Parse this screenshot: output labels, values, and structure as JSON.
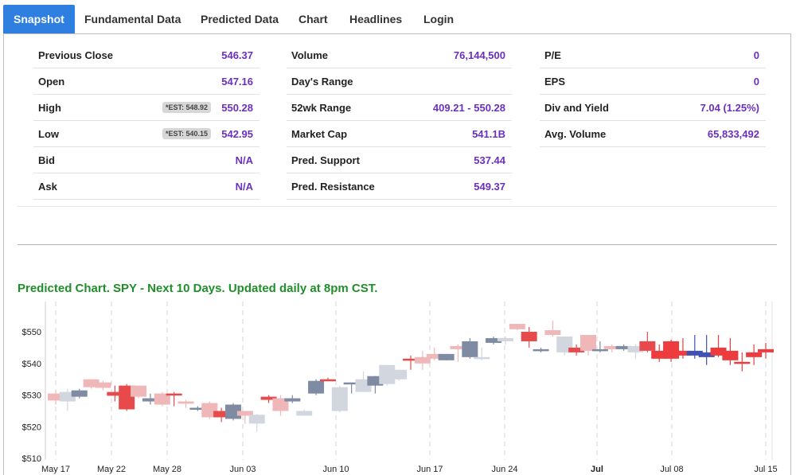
{
  "tabs": [
    "Snapshot",
    "Fundamental Data",
    "Predicted Data",
    "Chart",
    "Headlines",
    "Login"
  ],
  "col1": [
    {
      "label": "Previous Close",
      "value": "546.37"
    },
    {
      "label": "Open",
      "value": "547.16"
    },
    {
      "label": "High",
      "value": "550.28",
      "est": "*EST: 548.92"
    },
    {
      "label": "Low",
      "value": "542.95",
      "est": "*EST: 540.15"
    },
    {
      "label": "Bid",
      "value": "N/A"
    },
    {
      "label": "Ask",
      "value": "N/A"
    }
  ],
  "col2": [
    {
      "label": "Volume",
      "value": "76,144,500"
    },
    {
      "label": "Day's Range",
      "value": ""
    },
    {
      "label": "52wk Range",
      "value": "409.21 - 550.28"
    },
    {
      "label": "Market Cap",
      "value": "541.1B"
    },
    {
      "label": "Pred. Support",
      "value": "537.44"
    },
    {
      "label": "Pred. Resistance",
      "value": "549.37"
    }
  ],
  "col3": [
    {
      "label": "P/E",
      "value": "0"
    },
    {
      "label": "EPS",
      "value": "0"
    },
    {
      "label": "Div and Yield",
      "value": "7.04 (1.25%)"
    },
    {
      "label": "Avg. Volume",
      "value": "65,833,492"
    }
  ],
  "chart_title": "Predicted Chart. SPY - Next 10 Days. Updated daily at 8pm CST.",
  "chart_data": {
    "type": "candlestick",
    "ylim": [
      510,
      555
    ],
    "y_ticks": [
      550,
      540,
      530,
      520,
      510
    ],
    "y_tick_labels": [
      "$550",
      "$540",
      "$530",
      "$520",
      "$510"
    ],
    "x_tick_labels": [
      "May 17",
      "May 22",
      "May 28",
      "Jun 03",
      "Jun 10",
      "Jun 17",
      "Jun 24",
      "Jul",
      "Jul 08",
      "Jul 15"
    ],
    "colors": {
      "up_dark": "#7f8aa3",
      "up_light": "#d2d6df",
      "down_light": "#efb7b8",
      "down_dark": "#e84a4c",
      "pred_down": "#ee3b3d",
      "pred_up": "#3f51b5"
    },
    "candles": [
      {
        "o": 530.5,
        "h": 531.5,
        "l": 527.0,
        "c": 528.3,
        "color": "down_light"
      },
      {
        "o": 528.0,
        "h": 532.0,
        "l": 525.0,
        "c": 531.0,
        "color": "up_light"
      },
      {
        "o": 531.5,
        "h": 532.0,
        "l": 529.0,
        "c": 529.5,
        "color": "up_dark"
      },
      {
        "o": 535.0,
        "h": 535.0,
        "l": 532.0,
        "c": 532.5,
        "color": "down_light"
      },
      {
        "o": 534.0,
        "h": 534.5,
        "l": 531.5,
        "c": 532.3,
        "color": "down_light"
      },
      {
        "o": 531.0,
        "h": 533.0,
        "l": 528.0,
        "c": 529.8,
        "color": "down_dark"
      },
      {
        "o": 533.0,
        "h": 533.5,
        "l": 525.0,
        "c": 525.5,
        "color": "down_dark"
      },
      {
        "o": 533.0,
        "h": 533.0,
        "l": 529.0,
        "c": 529.5,
        "color": "down_light"
      },
      {
        "o": 529.0,
        "h": 530.5,
        "l": 527.0,
        "c": 528.0,
        "color": "up_dark"
      },
      {
        "o": 530.5,
        "h": 531.0,
        "l": 526.5,
        "c": 527.0,
        "color": "down_light"
      },
      {
        "o": 530.5,
        "h": 531.0,
        "l": 526.5,
        "c": 530.0,
        "color": "down_dark"
      },
      {
        "o": 527.3,
        "h": 528.5,
        "l": 526.0,
        "c": 528.0,
        "color": "down_light"
      },
      {
        "o": 525.5,
        "h": 526.5,
        "l": 525.0,
        "c": 526.0,
        "color": "up_dark"
      },
      {
        "o": 527.5,
        "h": 528.0,
        "l": 522.5,
        "c": 523.0,
        "color": "down_light"
      },
      {
        "o": 525.0,
        "h": 526.0,
        "l": 521.5,
        "c": 523.0,
        "color": "down_dark"
      },
      {
        "o": 522.5,
        "h": 527.5,
        "l": 522.0,
        "c": 527.0,
        "color": "up_dark"
      },
      {
        "o": 525.0,
        "h": 525.0,
        "l": 521.0,
        "c": 523.5,
        "color": "down_light"
      },
      {
        "o": 521.0,
        "h": 524.0,
        "l": 518.5,
        "c": 523.8,
        "color": "up_light"
      },
      {
        "o": 529.5,
        "h": 530.0,
        "l": 527.5,
        "c": 528.5,
        "color": "down_dark"
      },
      {
        "o": 529.0,
        "h": 530.0,
        "l": 523.5,
        "c": 525.0,
        "color": "down_light"
      },
      {
        "o": 529.0,
        "h": 530.0,
        "l": 527.5,
        "c": 528.0,
        "color": "up_dark"
      },
      {
        "o": 523.5,
        "h": 525.5,
        "l": 523.5,
        "c": 525.0,
        "color": "up_light"
      },
      {
        "o": 530.5,
        "h": 535.0,
        "l": 530.0,
        "c": 534.5,
        "color": "up_dark"
      },
      {
        "o": 535.0,
        "h": 535.5,
        "l": 534.5,
        "c": 534.8,
        "color": "down_dark"
      },
      {
        "o": 525.0,
        "h": 533.0,
        "l": 524.5,
        "c": 532.5,
        "color": "up_light"
      },
      {
        "o": 533.5,
        "h": 534.0,
        "l": 530.5,
        "c": 534.0,
        "color": "up_dark"
      },
      {
        "o": 531.0,
        "h": 537.5,
        "l": 531.0,
        "c": 535.0,
        "color": "up_light"
      },
      {
        "o": 533.0,
        "h": 536.0,
        "l": 530.5,
        "c": 536.0,
        "color": "up_dark"
      },
      {
        "o": 533.5,
        "h": 539.5,
        "l": 533.0,
        "c": 539.5,
        "color": "up_light"
      },
      {
        "o": 535.0,
        "h": 538.0,
        "l": 534.5,
        "c": 538.0,
        "color": "up_light"
      },
      {
        "o": 541.5,
        "h": 542.5,
        "l": 538.0,
        "c": 541.0,
        "color": "down_dark"
      },
      {
        "o": 540.0,
        "h": 544.0,
        "l": 538.0,
        "c": 542.0,
        "color": "down_light"
      },
      {
        "o": 543.0,
        "h": 545.0,
        "l": 541.0,
        "c": 541.5,
        "color": "down_light"
      },
      {
        "o": 541.0,
        "h": 543.0,
        "l": 541.0,
        "c": 543.0,
        "color": "up_dark"
      },
      {
        "o": 545.5,
        "h": 546.0,
        "l": 540.5,
        "c": 544.5,
        "color": "down_light"
      },
      {
        "o": 542.0,
        "h": 548.0,
        "l": 541.5,
        "c": 547.0,
        "color": "up_dark"
      },
      {
        "o": 541.5,
        "h": 545.0,
        "l": 541.0,
        "c": 542.0,
        "color": "up_light"
      },
      {
        "o": 548.0,
        "h": 548.5,
        "l": 546.0,
        "c": 546.5,
        "color": "up_dark"
      },
      {
        "o": 547.0,
        "h": 548.5,
        "l": 546.0,
        "c": 548.0,
        "color": "up_light"
      },
      {
        "o": 552.5,
        "h": 552.5,
        "l": 550.5,
        "c": 550.8,
        "color": "down_light"
      },
      {
        "o": 550.0,
        "h": 551.5,
        "l": 545.0,
        "c": 547.0,
        "color": "down_dark"
      },
      {
        "o": 544.5,
        "h": 545.0,
        "l": 543.5,
        "c": 544.0,
        "color": "up_dark"
      },
      {
        "o": 550.5,
        "h": 553.5,
        "l": 548.5,
        "c": 549.0,
        "color": "down_light"
      },
      {
        "o": 548.5,
        "h": 548.5,
        "l": 542.5,
        "c": 543.5,
        "color": "up_light"
      },
      {
        "o": 545.0,
        "h": 546.0,
        "l": 542.5,
        "c": 543.5,
        "color": "down_dark"
      },
      {
        "o": 549.0,
        "h": 549.0,
        "l": 542.5,
        "c": 544.0,
        "color": "down_light"
      },
      {
        "o": 544.0,
        "h": 547.0,
        "l": 543.5,
        "c": 544.5,
        "color": "up_dark"
      },
      {
        "o": 545.5,
        "h": 546.0,
        "l": 543.5,
        "c": 544.5,
        "color": "down_light"
      },
      {
        "o": 544.5,
        "h": 546.0,
        "l": 544.0,
        "c": 545.5,
        "color": "up_dark"
      },
      {
        "o": 543.5,
        "h": 546.0,
        "l": 541.5,
        "c": 545.5,
        "color": "up_light"
      },
      {
        "o": 547.0,
        "h": 550.0,
        "l": 543.5,
        "c": 544.0,
        "color": "down_dark"
      },
      {
        "o": 544.0,
        "h": 546.0,
        "l": 540.5,
        "c": 541.5,
        "color": "pred_down"
      },
      {
        "o": 547.0,
        "h": 547.5,
        "l": 540.5,
        "c": 541.5,
        "color": "pred_down"
      },
      {
        "o": 544.0,
        "h": 548.0,
        "l": 541.5,
        "c": 542.5,
        "color": "pred_down"
      },
      {
        "o": 542.5,
        "h": 549.0,
        "l": 541.5,
        "c": 544.0,
        "color": "pred_up"
      },
      {
        "o": 543.5,
        "h": 549.0,
        "l": 539.5,
        "c": 542.0,
        "color": "pred_up"
      },
      {
        "o": 545.0,
        "h": 549.0,
        "l": 542.0,
        "c": 542.5,
        "color": "pred_down"
      },
      {
        "o": 544.0,
        "h": 548.0,
        "l": 539.5,
        "c": 541.0,
        "color": "pred_down"
      },
      {
        "o": 540.5,
        "h": 543.5,
        "l": 537.5,
        "c": 540.0,
        "color": "pred_down"
      },
      {
        "o": 543.5,
        "h": 546.0,
        "l": 539.5,
        "c": 542.0,
        "color": "pred_down"
      },
      {
        "o": 544.5,
        "h": 546.5,
        "l": 541.5,
        "c": 543.5,
        "color": "pred_down"
      }
    ]
  }
}
